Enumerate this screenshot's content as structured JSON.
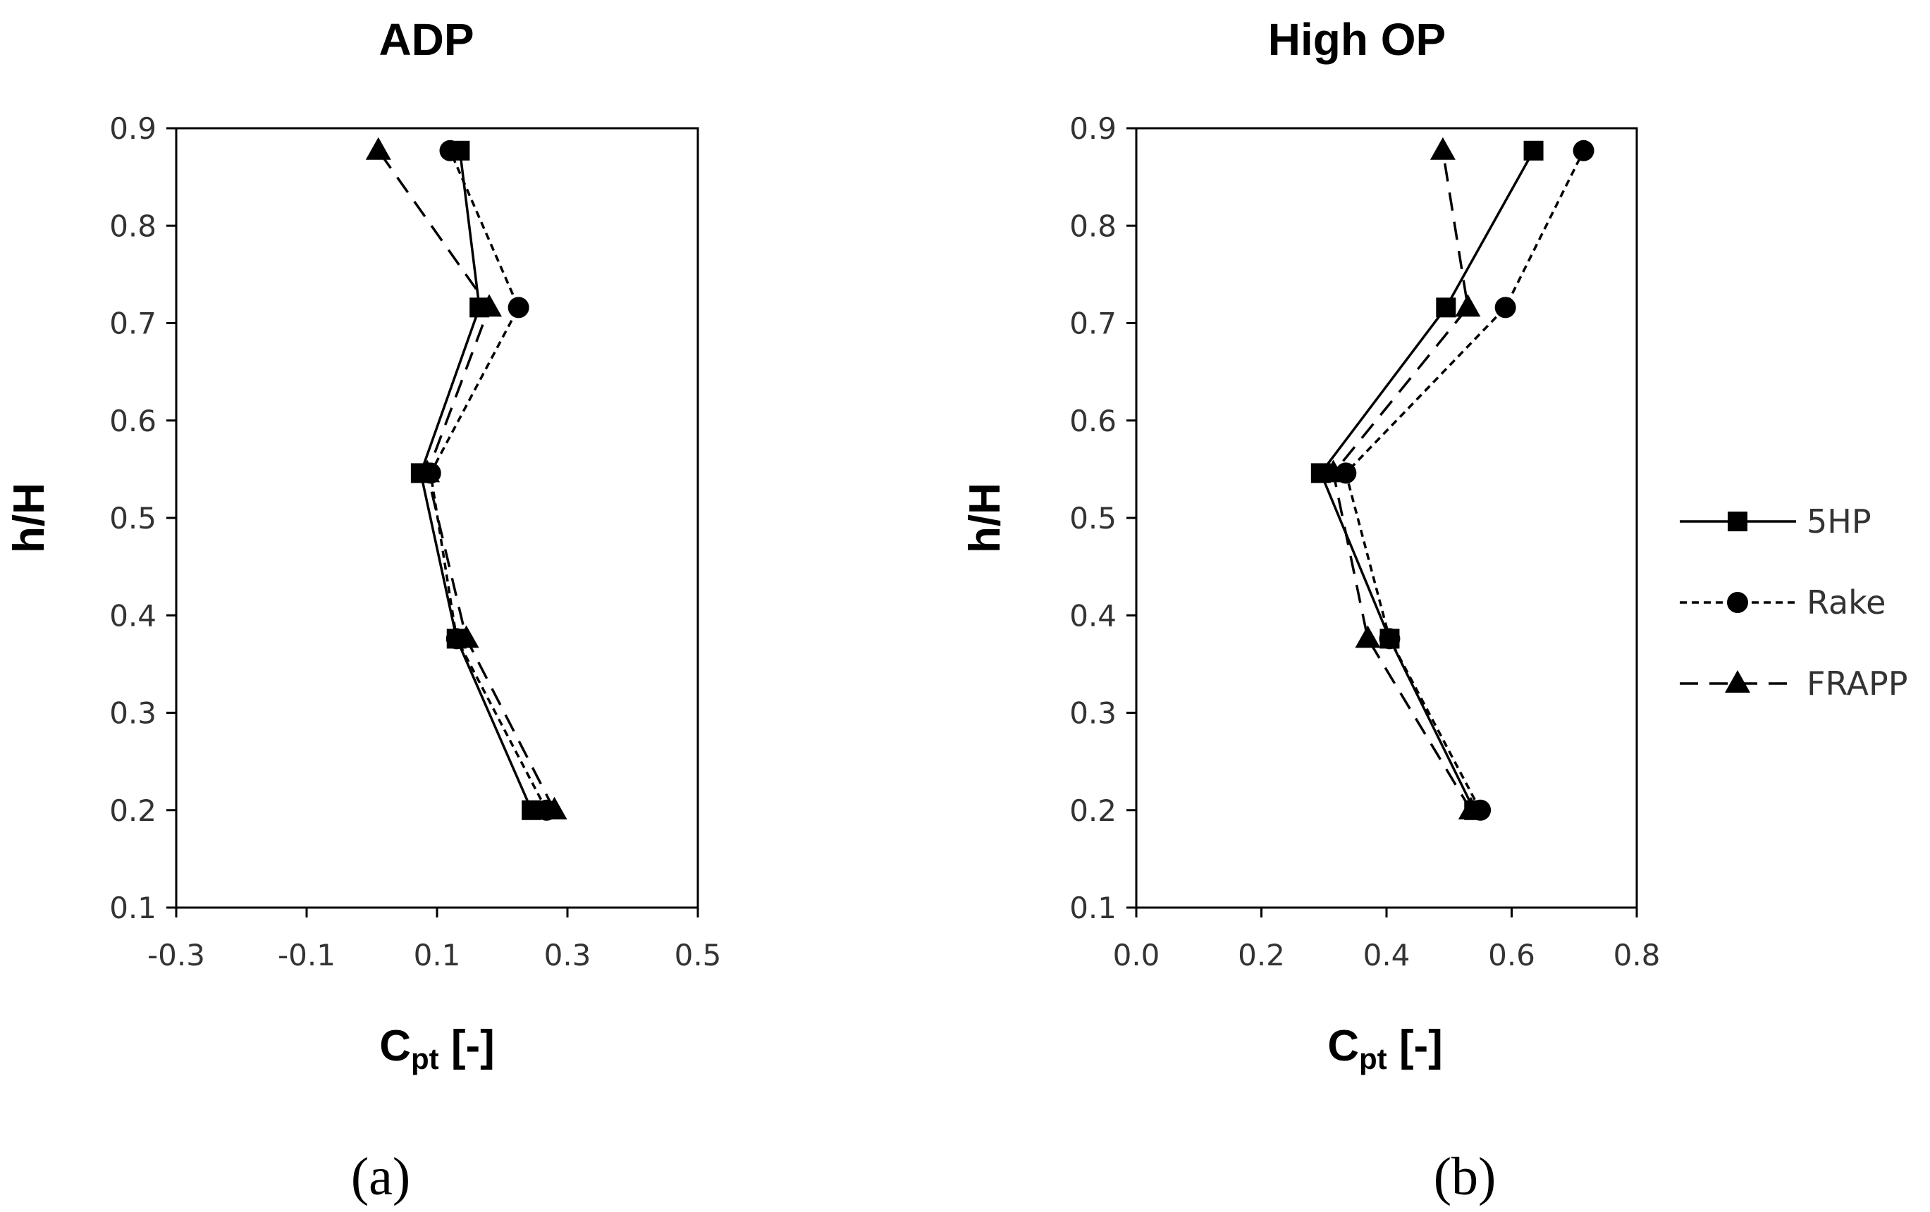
{
  "chart_data": [
    {
      "type": "line",
      "panel_label": "a",
      "title": "ADP",
      "xlabel": "C",
      "xlabel_sub": "pt",
      "xlabel_suffix": " [-]",
      "ylabel": "h/H",
      "xlim": [
        -0.3,
        0.5
      ],
      "ylim": [
        0.1,
        0.9
      ],
      "xticks": [
        "-0.3",
        "-0.1",
        "0.1",
        "0.3",
        "0.5"
      ],
      "yticks": [
        "0.1",
        "0.2",
        "0.3",
        "0.4",
        "0.5",
        "0.6",
        "0.7",
        "0.8",
        "0.9"
      ],
      "y": [
        0.2,
        0.376,
        0.546,
        0.716,
        0.877
      ],
      "series": [
        {
          "name": "5HP",
          "marker": "square",
          "line": "solid",
          "x": [
            0.245,
            0.13,
            0.075,
            0.165,
            0.135
          ]
        },
        {
          "name": "Rake",
          "marker": "circle",
          "line": "dotted",
          "x": [
            0.268,
            0.13,
            0.09,
            0.225,
            0.12
          ]
        },
        {
          "name": "FRAPP",
          "marker": "triangle",
          "line": "dashed",
          "x": [
            0.28,
            0.145,
            0.085,
            0.18,
            0.01
          ]
        }
      ]
    },
    {
      "type": "line",
      "panel_label": "b",
      "title": "High OP",
      "xlabel": "C",
      "xlabel_sub": "pt",
      "xlabel_suffix": " [-]",
      "ylabel": "h/H",
      "xlim": [
        0.0,
        0.8
      ],
      "ylim": [
        0.1,
        0.9
      ],
      "xticks": [
        "0.0",
        "0.2",
        "0.4",
        "0.6",
        "0.8"
      ],
      "yticks": [
        "0.1",
        "0.2",
        "0.3",
        "0.4",
        "0.5",
        "0.6",
        "0.7",
        "0.8",
        "0.9"
      ],
      "y": [
        0.2,
        0.376,
        0.546,
        0.716,
        0.877
      ],
      "series": [
        {
          "name": "5HP",
          "marker": "square",
          "line": "solid",
          "x": [
            0.54,
            0.405,
            0.295,
            0.495,
            0.635
          ]
        },
        {
          "name": "Rake",
          "marker": "circle",
          "line": "dotted",
          "x": [
            0.55,
            0.405,
            0.335,
            0.59,
            0.715
          ]
        },
        {
          "name": "FRAPP",
          "marker": "triangle",
          "line": "dashed",
          "x": [
            0.535,
            0.37,
            0.315,
            0.53,
            0.49
          ]
        }
      ]
    }
  ],
  "legend": [
    "5HP",
    "Rake",
    "FRAPP"
  ],
  "captions": [
    "(a)",
    "(b)"
  ],
  "colors": {
    "line": "#000000",
    "frame": "#000000",
    "text": "#333333"
  }
}
